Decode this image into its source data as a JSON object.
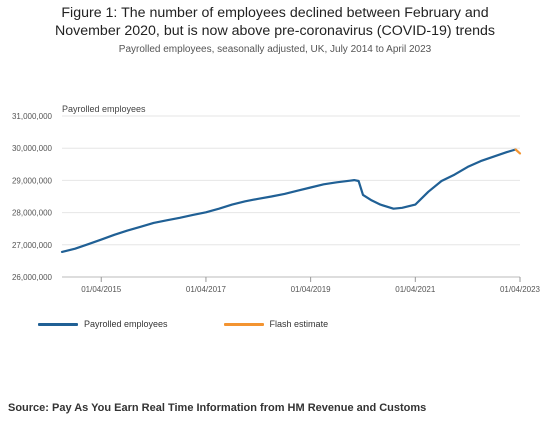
{
  "title": "Figure 1: The number of employees declined between February and November 2020, but is now above pre-coronavirus (COVID-19) trends",
  "title_line1": "Figure 1: The number of employees declined between February and",
  "title_line2": "November 2020, but is now above pre-coronavirus (COVID-19) trends",
  "subtitle": "Payrolled employees, seasonally adjusted, UK, July 2014 to April 2023",
  "source": "Source: Pay As You Earn Real Time Information from HM Revenue and Customs",
  "chart_data": {
    "type": "line",
    "title": "Figure 1: The number of employees declined between February and November 2020, but is now above pre-coronavirus (COVID-19) trends",
    "subtitle": "Payrolled employees, seasonally adjusted, UK, July 2014 to April 2023",
    "ylabel": "Payrolled employees",
    "xlabel": "",
    "ylim": [
      26000000,
      31000000
    ],
    "yticks": [
      26000000,
      27000000,
      28000000,
      29000000,
      30000000,
      31000000
    ],
    "ytick_labels": [
      "26,000,000",
      "27,000,000",
      "28,000,000",
      "29,000,000",
      "30,000,000",
      "31,000,000"
    ],
    "xticks": [
      "2015-04",
      "2017-04",
      "2019-04",
      "2021-04",
      "2023-04"
    ],
    "xtick_labels": [
      "01/04/2015",
      "01/04/2017",
      "01/04/2019",
      "01/04/2021",
      "01/04/2023"
    ],
    "x_range": [
      "2014-07",
      "2023-04"
    ],
    "grid": "horizontal",
    "legend": "bottom-left",
    "series": [
      {
        "name": "Payrolled employees",
        "color": "#206095",
        "points": [
          [
            "2014-07",
            26780000
          ],
          [
            "2014-10",
            26880000
          ],
          [
            "2015-01",
            27020000
          ],
          [
            "2015-04",
            27160000
          ],
          [
            "2015-07",
            27310000
          ],
          [
            "2015-10",
            27440000
          ],
          [
            "2016-01",
            27560000
          ],
          [
            "2016-04",
            27680000
          ],
          [
            "2016-07",
            27760000
          ],
          [
            "2016-10",
            27840000
          ],
          [
            "2017-01",
            27930000
          ],
          [
            "2017-04",
            28010000
          ],
          [
            "2017-07",
            28120000
          ],
          [
            "2017-10",
            28250000
          ],
          [
            "2018-01",
            28350000
          ],
          [
            "2018-04",
            28430000
          ],
          [
            "2018-07",
            28500000
          ],
          [
            "2018-10",
            28580000
          ],
          [
            "2019-01",
            28680000
          ],
          [
            "2019-04",
            28780000
          ],
          [
            "2019-07",
            28880000
          ],
          [
            "2019-10",
            28940000
          ],
          [
            "2020-01",
            28990000
          ],
          [
            "2020-02",
            29010000
          ],
          [
            "2020-03",
            28980000
          ],
          [
            "2020-04",
            28550000
          ],
          [
            "2020-06",
            28380000
          ],
          [
            "2020-08",
            28250000
          ],
          [
            "2020-11",
            28120000
          ],
          [
            "2021-01",
            28150000
          ],
          [
            "2021-04",
            28250000
          ],
          [
            "2021-07",
            28650000
          ],
          [
            "2021-10",
            28980000
          ],
          [
            "2022-01",
            29180000
          ],
          [
            "2022-04",
            29420000
          ],
          [
            "2022-07",
            29600000
          ],
          [
            "2022-10",
            29740000
          ],
          [
            "2023-01",
            29880000
          ],
          [
            "2023-03",
            29960000
          ]
        ]
      },
      {
        "name": "Flash estimate",
        "color": "#f39431",
        "points": [
          [
            "2023-03",
            29960000
          ],
          [
            "2023-04",
            29840000
          ]
        ]
      }
    ]
  }
}
